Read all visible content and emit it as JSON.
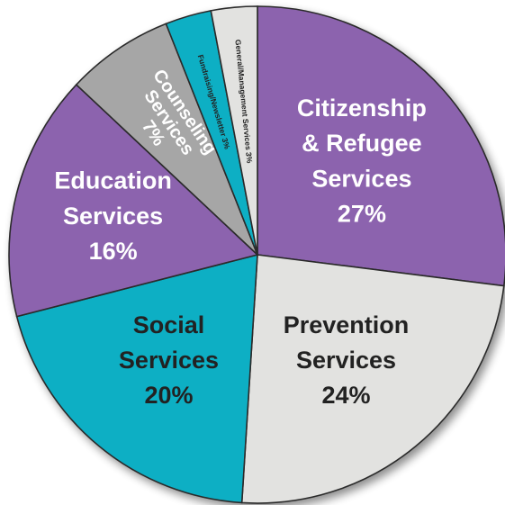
{
  "chart_data": {
    "type": "pie",
    "title": "",
    "legend": "none",
    "slices": [
      {
        "label_lines": [
          "Citizenship",
          "& Refugee",
          "Services"
        ],
        "percent_label": "27%",
        "value": 27,
        "color": "#8c64ae",
        "text_color": "#ffffff"
      },
      {
        "label_lines": [
          "Prevention",
          "Services"
        ],
        "percent_label": "24%",
        "value": 24,
        "color": "#e2e2e0",
        "text_color": "#222222"
      },
      {
        "label_lines": [
          "Social",
          "Services"
        ],
        "percent_label": "20%",
        "value": 20,
        "color": "#11afc4",
        "text_color": "#222222"
      },
      {
        "label_lines": [
          "Education",
          "Services"
        ],
        "percent_label": "16%",
        "value": 16,
        "color": "#8c64ae",
        "text_color": "#ffffff"
      },
      {
        "label_lines": [
          "Counseling",
          "Services"
        ],
        "percent_label": "7%",
        "value": 7,
        "color": "#a6a6a6",
        "text_color": "#ffffff"
      },
      {
        "label_lines": [
          "Fundraising/Newsletter"
        ],
        "percent_label": "3%",
        "value": 3,
        "color": "#11afc4",
        "text_color": "#222222"
      },
      {
        "label_lines": [
          "General/Management Services"
        ],
        "percent_label": "3%",
        "value": 3,
        "color": "#e2e2e0",
        "text_color": "#222222"
      }
    ]
  }
}
